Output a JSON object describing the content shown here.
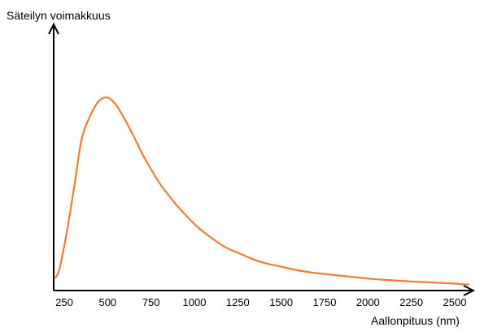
{
  "chart_data": {
    "type": "line",
    "title": "",
    "ylabel": "Säteilyn voimakkuus",
    "xlabel": "Aallonpituus (nm)",
    "xlim": [
      200,
      2600
    ],
    "ylim": [
      0,
      1.08
    ],
    "x_ticks": [
      250,
      500,
      750,
      1000,
      1250,
      1500,
      1750,
      2000,
      2250,
      2500
    ],
    "y_ticks": [],
    "grid": false,
    "legend": "none",
    "series": [
      {
        "color": "#ed7d31",
        "x": [
          200,
          220,
          250,
          280,
          300,
          320,
          340,
          360,
          380,
          400,
          420,
          440,
          460,
          480,
          500,
          520,
          550,
          600,
          650,
          700,
          750,
          800,
          850,
          900,
          950,
          1000,
          1050,
          1100,
          1150,
          1200,
          1250,
          1300,
          1350,
          1400,
          1500,
          1600,
          1700,
          1800,
          1900,
          2000,
          2100,
          2200,
          2300,
          2400,
          2500,
          2580
        ],
        "y": [
          0.07,
          0.1,
          0.24,
          0.4,
          0.52,
          0.64,
          0.78,
          0.86,
          0.91,
          0.95,
          0.99,
          1.02,
          1.04,
          1.05,
          1.05,
          1.04,
          1.01,
          0.93,
          0.84,
          0.74,
          0.66,
          0.58,
          0.52,
          0.46,
          0.41,
          0.36,
          0.32,
          0.285,
          0.25,
          0.225,
          0.205,
          0.185,
          0.165,
          0.15,
          0.13,
          0.108,
          0.095,
          0.085,
          0.075,
          0.065,
          0.058,
          0.052,
          0.047,
          0.042,
          0.038,
          0.032
        ]
      }
    ]
  }
}
